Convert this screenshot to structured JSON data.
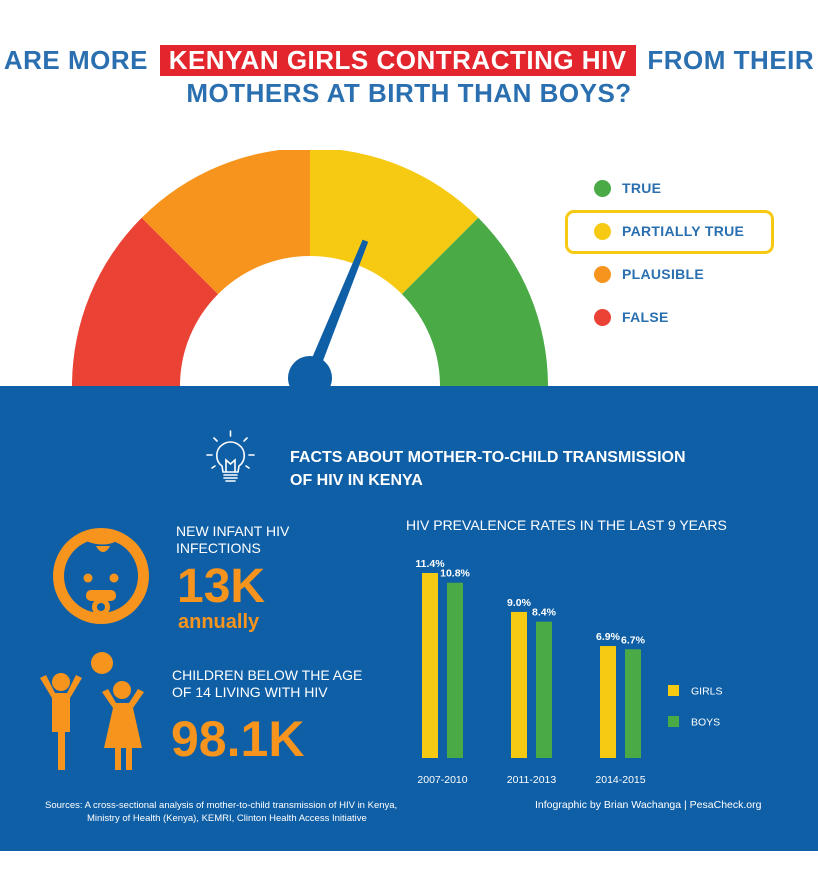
{
  "title": {
    "line1_pre": "ARE MORE",
    "line1_highlight": "KENYAN GIRLS CONTRACTING HIV",
    "line1_post": "FROM THEIR",
    "line2": "MOTHERS AT BIRTH THAN BOYS?"
  },
  "gauge": {
    "verdict": "PARTIALLY TRUE",
    "colors": {
      "red": "#ea4335",
      "orange": "#f7941d",
      "yellow": "#f6c913",
      "green": "#4aaa46",
      "needle": "#0f5fa6"
    }
  },
  "legend": {
    "items": [
      {
        "label": "TRUE",
        "color": "#4aaa46",
        "selected": false
      },
      {
        "label": "PARTIALLY TRUE",
        "color": "#f6c913",
        "selected": true
      },
      {
        "label": "PLAUSIBLE",
        "color": "#f7941d",
        "selected": false
      },
      {
        "label": "FALSE",
        "color": "#ea4335",
        "selected": false
      }
    ]
  },
  "facts": {
    "heading_line1": "FACTS ABOUT MOTHER-TO-CHILD TRANSMISSION",
    "heading_line2": "OF HIV IN KENYA"
  },
  "stats": {
    "infant_label_1": "NEW INFANT HIV",
    "infant_label_2": "INFECTIONS",
    "infant_value": "13K",
    "infant_unit": "annually",
    "children_label_1": "CHILDREN BELOW THE AGE",
    "children_label_2": "OF 14 LIVING WITH HIV",
    "children_value": "98.1K"
  },
  "chart_data": {
    "type": "bar",
    "title": "HIV PREVALENCE RATES IN THE LAST 9 YEARS",
    "categories": [
      "2007-2010",
      "2011-2013",
      "2014-2015"
    ],
    "series": [
      {
        "name": "GIRLS",
        "values": [
          11.4,
          9.0,
          6.9
        ],
        "labels": [
          "11.4%",
          "9.0%",
          "6.9%"
        ],
        "color": "#f6c913"
      },
      {
        "name": "BOYS",
        "values": [
          10.8,
          8.4,
          6.7
        ],
        "labels": [
          "10.8%",
          "8.4%",
          "6.7%"
        ],
        "color": "#4aaa46"
      }
    ],
    "ylim": [
      0,
      11.4
    ],
    "legend": "right"
  },
  "footer": {
    "sources_line1": "Sources: A cross-sectional analysis of mother-to-child transmission of HIV in Kenya,",
    "sources_line2": "Ministry of Health (Kenya), KEMRI, Clinton Health Access Initiative",
    "credit": "Infographic by Brian Wachanga | PesaCheck.org"
  }
}
